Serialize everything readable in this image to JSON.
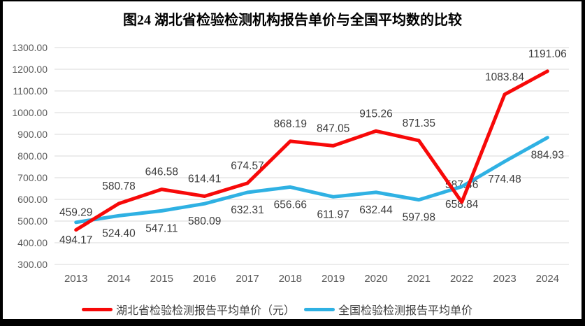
{
  "title": "图24 湖北省检验检测机构报告单价与全国平均数的比较",
  "chart_data": {
    "type": "line",
    "title": "图24 湖北省检验检测机构报告单价与全国平均数的比较",
    "categories": [
      "2013",
      "2014",
      "2015",
      "2016",
      "2017",
      "2018",
      "2019",
      "2020",
      "2021",
      "2022",
      "2023",
      "2024"
    ],
    "series": [
      {
        "name": "湖北省检验检测报告平均单价（元）",
        "color": "#f70909",
        "label_position": "above",
        "values": [
          459.29,
          580.78,
          646.58,
          614.41,
          674.57,
          868.19,
          847.05,
          915.26,
          871.35,
          587.46,
          1083.84,
          1191.06
        ]
      },
      {
        "name": "全国检验检测报告平均单价",
        "color": "#2fb1e3",
        "label_position": "below",
        "values": [
          494.17,
          524.4,
          547.11,
          580.09,
          632.31,
          656.66,
          611.97,
          632.44,
          597.98,
          658.84,
          774.48,
          884.93
        ]
      }
    ],
    "ylim": [
      300,
      1300
    ],
    "ytick_step": 100,
    "ytick_decimals": 2,
    "grid": true,
    "legend_position": "bottom",
    "gridline_color": "#d9d9d9",
    "tick_label_color": "#595959",
    "data_label_color": "#3b3b3b",
    "frame_color": "#000000"
  }
}
